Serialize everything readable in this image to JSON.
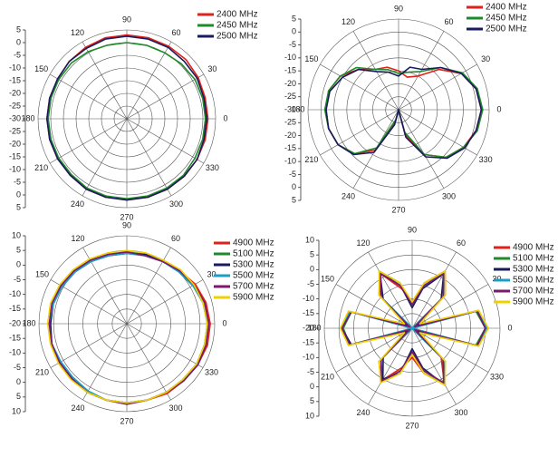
{
  "chart_data": [
    {
      "type": "polar",
      "rlim": [
        -30,
        5
      ],
      "rticks": [
        -30,
        -25,
        -20,
        -15,
        -10,
        -5,
        0,
        5
      ],
      "thetaticks": [
        0,
        30,
        60,
        90,
        120,
        150,
        180,
        210,
        240,
        270,
        300,
        330
      ],
      "legend": "upper right",
      "theta": [
        0,
        15,
        30,
        45,
        60,
        75,
        90,
        105,
        120,
        135,
        150,
        165,
        180,
        195,
        210,
        225,
        240,
        255,
        270,
        285,
        300,
        315,
        330,
        345
      ],
      "series": [
        {
          "name": "2400 MHz",
          "color": "#e0201b",
          "values": [
            2,
            2,
            2.5,
            3,
            3,
            3,
            3,
            3,
            2.5,
            2,
            1.5,
            1.5,
            1.5,
            1.5,
            1.5,
            1.5,
            2,
            2,
            2,
            2,
            2,
            2,
            2,
            2
          ]
        },
        {
          "name": "2450 MHz",
          "color": "#1f8a2a",
          "values": [
            1,
            1,
            1,
            0.5,
            0,
            0,
            0,
            0,
            0.5,
            1,
            1,
            1,
            1,
            1,
            1,
            1,
            1.5,
            1.5,
            1.5,
            1.5,
            1.5,
            1.5,
            1,
            1
          ]
        },
        {
          "name": "2500 MHz",
          "color": "#1a1a5e",
          "values": [
            1.5,
            1.5,
            2,
            2,
            2.5,
            2.5,
            2.5,
            2.5,
            2,
            2,
            1.5,
            1.5,
            1.5,
            1.5,
            1.5,
            1.5,
            2,
            2,
            2,
            2,
            2,
            2,
            2,
            1.5
          ]
        }
      ]
    },
    {
      "type": "polar",
      "rlim": [
        -30,
        5
      ],
      "rticks": [
        -30,
        -25,
        -20,
        -15,
        -10,
        -5,
        0,
        5
      ],
      "thetaticks": [
        0,
        30,
        60,
        90,
        120,
        150,
        180,
        210,
        240,
        270,
        300,
        330
      ],
      "legend": "upper right",
      "theta": [
        0,
        15,
        30,
        45,
        60,
        75,
        90,
        105,
        120,
        135,
        150,
        165,
        180,
        195,
        210,
        225,
        240,
        255,
        270,
        285,
        300,
        315,
        330,
        345
      ],
      "series": [
        {
          "name": "2400 MHz",
          "color": "#e0201b",
          "values": [
            2,
            1,
            -2,
            -8,
            -15,
            -17,
            -15,
            -13,
            -12,
            -8,
            -4,
            -2,
            -2,
            -2,
            -3,
            -6,
            -12,
            -25,
            -30,
            -20,
            -10,
            -4,
            -1,
            1
          ]
        },
        {
          "name": "2450 MHz",
          "color": "#1f8a2a",
          "values": [
            2.5,
            1.5,
            -1.5,
            -7,
            -13,
            -15,
            -16,
            -14,
            -12,
            -7,
            -4,
            -2,
            -1.5,
            -2,
            -3,
            -6,
            -13,
            -26,
            -30,
            -21,
            -10,
            -4,
            -1,
            1.5
          ]
        },
        {
          "name": "2500 MHz",
          "color": "#1a1a5e",
          "values": [
            2,
            1,
            -2,
            -7,
            -12,
            -13,
            -17,
            -15,
            -13,
            -8,
            -5,
            -2.5,
            -2,
            -2,
            -3,
            -5.5,
            -11,
            -24,
            -30,
            -19,
            -9,
            -3.5,
            -0.5,
            1
          ]
        }
      ]
    },
    {
      "type": "polar",
      "rlim": [
        -20,
        10
      ],
      "rticks": [
        -20,
        -15,
        -10,
        -5,
        0,
        5,
        10
      ],
      "thetaticks": [
        0,
        30,
        60,
        90,
        120,
        150,
        180,
        210,
        240,
        270,
        300,
        330
      ],
      "legend": "upper right",
      "theta": [
        0,
        15,
        30,
        45,
        60,
        75,
        90,
        105,
        120,
        135,
        150,
        165,
        180,
        195,
        210,
        225,
        240,
        255,
        270,
        285,
        300,
        315,
        330,
        345
      ],
      "series": [
        {
          "name": "4900 MHz",
          "color": "#e0201b",
          "values": [
            8.5,
            8,
            7,
            5.5,
            4.5,
            4,
            4,
            4,
            4.5,
            5,
            5.5,
            6,
            6.5,
            6.5,
            6.5,
            6.5,
            7,
            7,
            7,
            7,
            7.5,
            7.5,
            8,
            8.5
          ]
        },
        {
          "name": "5100 MHz",
          "color": "#1f8a2a",
          "values": [
            7.5,
            7,
            6.5,
            5.5,
            4.5,
            4.5,
            4.5,
            4.5,
            5,
            5,
            5.5,
            6,
            6.5,
            6.5,
            6.5,
            6,
            6.5,
            7,
            7,
            7,
            7,
            7,
            7.5,
            7.5
          ]
        },
        {
          "name": "5300 MHz",
          "color": "#1a1a5e",
          "values": [
            8,
            7.5,
            6.5,
            5.5,
            5,
            4.5,
            4,
            4,
            4.5,
            5,
            5.5,
            6,
            6,
            6.5,
            6.5,
            6.5,
            7,
            7,
            7,
            7,
            7,
            7.5,
            8,
            8
          ]
        },
        {
          "name": "5500 MHz",
          "color": "#1aa0c8",
          "values": [
            7.5,
            7,
            6,
            5,
            4.5,
            4,
            4,
            4,
            4.5,
            5,
            5.5,
            6,
            6.5,
            6.5,
            6,
            6,
            6.5,
            7,
            7,
            7,
            7,
            7,
            7.5,
            7.5
          ]
        },
        {
          "name": "5700 MHz",
          "color": "#7a1a6e",
          "values": [
            8,
            7.5,
            6.5,
            5.5,
            4.5,
            4,
            4.5,
            4.5,
            5,
            5.5,
            6,
            6.5,
            6.5,
            6.5,
            6.5,
            6.5,
            7,
            7,
            7.5,
            7,
            7,
            7.5,
            8,
            8
          ]
        },
        {
          "name": "5900 MHz",
          "color": "#f0d000",
          "values": [
            7.5,
            7,
            6.5,
            6,
            5,
            5,
            5,
            5,
            5.5,
            6,
            6.5,
            7,
            7,
            7,
            7,
            7,
            7,
            7,
            7,
            7,
            7,
            7,
            7.5,
            7.5
          ]
        }
      ]
    },
    {
      "type": "polar",
      "rlim": [
        -20,
        10
      ],
      "rticks": [
        -20,
        -15,
        -10,
        -5,
        0,
        5,
        10
      ],
      "thetaticks": [
        0,
        30,
        60,
        90,
        120,
        150,
        180,
        210,
        240,
        270,
        300,
        330
      ],
      "legend": "upper right",
      "theta": [
        0,
        15,
        30,
        45,
        60,
        75,
        90,
        105,
        120,
        135,
        150,
        165,
        180,
        195,
        210,
        225,
        240,
        255,
        270,
        285,
        300,
        315,
        330,
        345
      ],
      "series": [
        {
          "name": "4900 MHz",
          "color": "#e0201b",
          "values": [
            5.5,
            3,
            -19,
            -4,
            2.5,
            -4,
            -11,
            -6,
            1.5,
            -4,
            -19,
            2,
            4,
            2.5,
            -19,
            -5,
            0.5,
            -6,
            -10,
            -4,
            2,
            -6,
            -19,
            3
          ]
        },
        {
          "name": "5100 MHz",
          "color": "#1f8a2a",
          "values": [
            5,
            2.5,
            -20,
            -5,
            2,
            -5,
            -12,
            -5,
            2,
            -5,
            -20,
            1.5,
            3.5,
            2,
            -20,
            -4,
            1,
            -5,
            -12,
            -5,
            1.5,
            -5,
            -20,
            2.5
          ]
        },
        {
          "name": "5300 MHz",
          "color": "#1a1a5e",
          "values": [
            5,
            3,
            -18,
            -6,
            1.5,
            -6,
            -13,
            -5,
            2,
            -6,
            -18,
            2,
            4,
            1.5,
            -18,
            -6,
            0,
            -4,
            -13,
            -6,
            2.5,
            -5,
            -18,
            3
          ]
        },
        {
          "name": "5500 MHz",
          "color": "#1aa0c8",
          "values": [
            5.5,
            3.5,
            -20,
            -5,
            2,
            -5,
            -12,
            -4,
            2.5,
            -5,
            -20,
            2,
            4.5,
            2,
            -20,
            -5,
            1,
            -5,
            -11,
            -5,
            2,
            -4,
            -20,
            3.5
          ]
        },
        {
          "name": "5700 MHz",
          "color": "#7a1a6e",
          "values": [
            5,
            3,
            -19,
            -5,
            1.5,
            -5,
            -12,
            -5,
            1.5,
            -5,
            -19,
            1.5,
            4,
            2,
            -19,
            -5,
            1,
            -5,
            -12,
            -5,
            1.5,
            -5,
            -19,
            3
          ]
        },
        {
          "name": "5900 MHz",
          "color": "#f0d000",
          "values": [
            6,
            3.5,
            -17,
            -4,
            2.5,
            -4,
            -11,
            -4,
            2.5,
            -4,
            -17,
            2.5,
            4.5,
            2.5,
            -17,
            -4,
            1.5,
            -4,
            -11,
            -4,
            2.5,
            -4,
            -17,
            3.5
          ]
        }
      ]
    }
  ]
}
